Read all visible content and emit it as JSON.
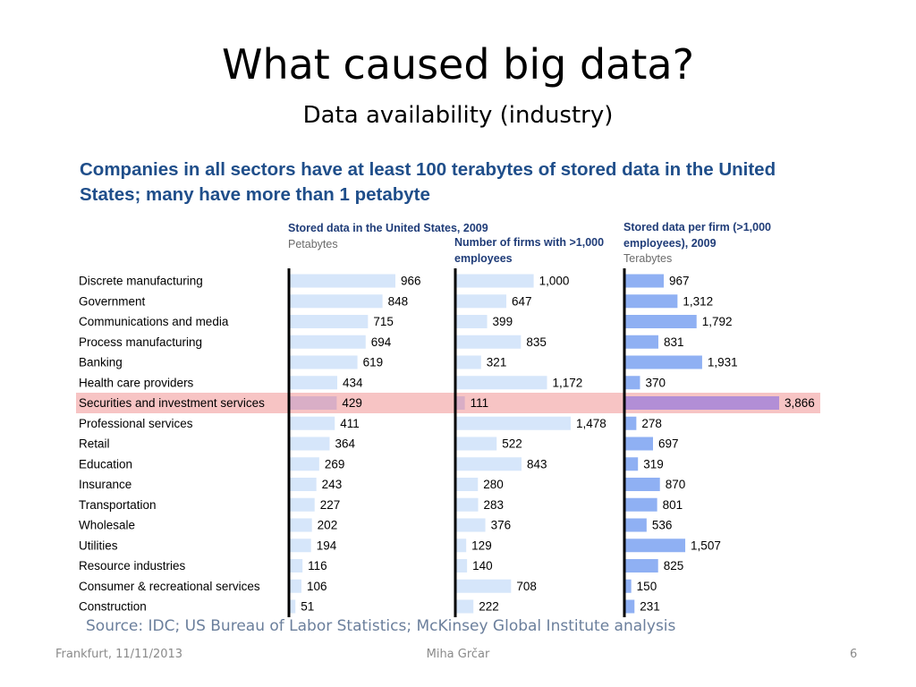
{
  "slide": {
    "title": "What caused big data?",
    "subtitle": "Data availability (industry)",
    "headline": "Companies in all sectors have at least 100 terabytes of stored data in the United States; many have more than 1 petabyte",
    "source": "Source: IDC; US Bureau of Labor Statistics; McKinsey Global Institute analysis",
    "footer_left": "Frankfurt, 11/11/2013",
    "footer_center": "Miha Grčar",
    "footer_right": "6"
  },
  "chart_data": {
    "type": "bar",
    "categories": [
      "Discrete manufacturing",
      "Government",
      "Communications and media",
      "Process manufacturing",
      "Banking",
      "Health care providers",
      "Securities and investment services",
      "Professional services",
      "Retail",
      "Education",
      "Insurance",
      "Transportation",
      "Wholesale",
      "Utilities",
      "Resource industries",
      "Consumer & recreational services",
      "Construction"
    ],
    "highlighted_category": "Securities and investment services",
    "series": [
      {
        "name": "Stored data in the United States, 2009",
        "unit": "Petabytes",
        "values": [
          966,
          848,
          715,
          694,
          619,
          434,
          429,
          411,
          364,
          269,
          243,
          227,
          202,
          194,
          116,
          106,
          51
        ],
        "labels": [
          "966",
          "848",
          "715",
          "694",
          "619",
          "434",
          "429",
          "411",
          "364",
          "269",
          "243",
          "227",
          "202",
          "194",
          "116",
          "106",
          "51"
        ]
      },
      {
        "name": "Number of firms with >1,000 employees",
        "unit": "",
        "values": [
          1000,
          647,
          399,
          835,
          321,
          1172,
          111,
          1478,
          522,
          843,
          280,
          283,
          376,
          129,
          140,
          708,
          222
        ],
        "labels": [
          "1,000",
          "647",
          "399",
          "835",
          "321",
          "1,172",
          "111",
          "1,478",
          "522",
          "843",
          "280",
          "283",
          "376",
          "129",
          "140",
          "708",
          "222"
        ]
      },
      {
        "name": "Stored data per firm (>1,000 employees), 2009",
        "unit": "Terabytes",
        "values": [
          967,
          1312,
          1792,
          831,
          1931,
          370,
          3866,
          278,
          697,
          319,
          870,
          801,
          536,
          1507,
          825,
          150,
          231
        ],
        "labels": [
          "967",
          "1,312",
          "1,792",
          "831",
          "1,931",
          "370",
          "3,866",
          "278",
          "697",
          "319",
          "870",
          "801",
          "536",
          "1,507",
          "825",
          "150",
          "231"
        ]
      }
    ],
    "colors": {
      "bar_light": "#d6e6fa",
      "bar_medium": "#8fb0f3",
      "highlight_band": "#f7c4c4",
      "highlight_bar_light": "#d9aec6",
      "highlight_bar_medium": "#b28ed6",
      "axis": "#000000",
      "headline": "#1f4e8a"
    }
  }
}
